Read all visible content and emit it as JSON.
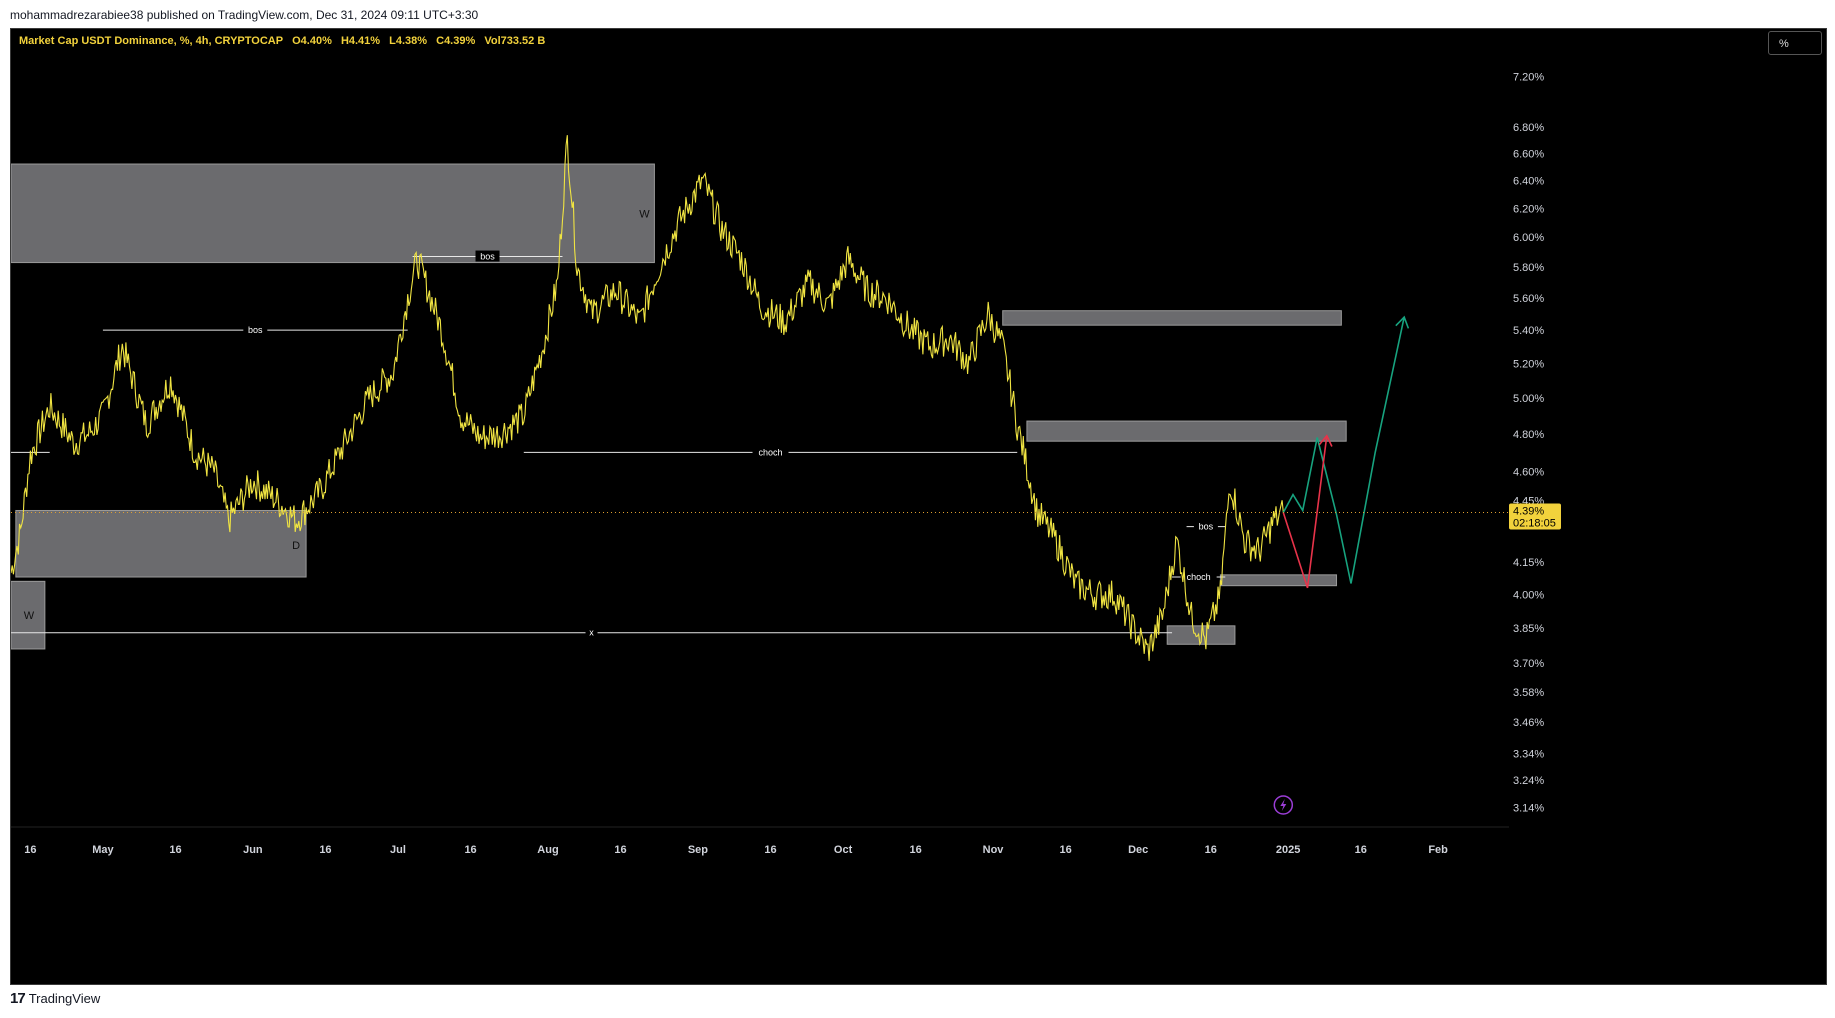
{
  "header": {
    "published_line": "mohammadrezarabiee38 published on TradingView.com, Dec 31, 2024 09:11 UTC+3:30"
  },
  "legend": {
    "symbol": "Market Cap USDT Dominance, %, 4h, CRYPTOCAP",
    "open": "O4.40%",
    "high": "H4.41%",
    "low": "L4.38%",
    "close": "C4.39%",
    "volume": "Vol733.52 B"
  },
  "scale_button": "%",
  "price_label": {
    "value": "4.39%",
    "countdown": "02:18:05",
    "level": 4.39
  },
  "footer": {
    "brand": "TradingView",
    "logo_text": "17"
  },
  "colors": {
    "background": "#000000",
    "price_line": "#f0e442",
    "zone_fill": "#6b6b6e",
    "projection_green": "#17a37f",
    "projection_red": "#e8334a",
    "price_tag": "#f2d23c"
  },
  "icons": {
    "lightning": "lightning-icon",
    "logo": "tradingview-logo-icon"
  },
  "chart_data": {
    "type": "line",
    "scale": "log",
    "y_ticks": [
      "7.20%",
      "6.80%",
      "6.60%",
      "6.40%",
      "6.20%",
      "6.00%",
      "5.80%",
      "5.60%",
      "5.40%",
      "5.20%",
      "5.00%",
      "4.80%",
      "4.60%",
      "4.45%",
      "4.15%",
      "4.00%",
      "3.85%",
      "3.70%",
      "3.58%",
      "3.46%",
      "3.34%",
      "3.24%",
      "3.14%"
    ],
    "y_tick_values": [
      7.2,
      6.8,
      6.6,
      6.4,
      6.2,
      6.0,
      5.8,
      5.6,
      5.4,
      5.2,
      5.0,
      4.8,
      4.6,
      4.45,
      4.15,
      4.0,
      3.85,
      3.7,
      3.58,
      3.46,
      3.34,
      3.24,
      3.14
    ],
    "x_ticks": [
      "16",
      "May",
      "16",
      "Jun",
      "16",
      "Jul",
      "16",
      "Aug",
      "16",
      "Sep",
      "16",
      "Oct",
      "16",
      "Nov",
      "16",
      "Dec",
      "16",
      "2025",
      "16",
      "Feb"
    ],
    "x_tick_dates": [
      "2024-04-16",
      "2024-05-01",
      "2024-05-16",
      "2024-06-01",
      "2024-06-16",
      "2024-07-01",
      "2024-07-16",
      "2024-08-01",
      "2024-08-16",
      "2024-09-01",
      "2024-09-16",
      "2024-10-01",
      "2024-10-16",
      "2024-11-01",
      "2024-11-16",
      "2024-12-01",
      "2024-12-16",
      "2025-01-01",
      "2025-01-16",
      "2025-02-01"
    ],
    "series": [
      {
        "x": [
          "2024-04-12",
          "2024-04-14",
          "2024-04-16",
          "2024-04-20",
          "2024-04-25",
          "2024-04-28",
          "2024-05-01",
          "2024-05-05",
          "2024-05-10",
          "2024-05-15",
          "2024-05-20",
          "2024-05-24",
          "2024-05-27",
          "2024-06-01",
          "2024-06-06",
          "2024-06-10",
          "2024-06-15",
          "2024-06-20",
          "2024-06-25",
          "2024-06-30",
          "2024-07-03",
          "2024-07-05",
          "2024-07-10",
          "2024-07-14",
          "2024-07-18",
          "2024-07-22",
          "2024-07-27",
          "2024-07-31",
          "2024-08-03",
          "2024-08-05",
          "2024-08-07",
          "2024-08-10",
          "2024-08-15",
          "2024-08-20",
          "2024-08-24",
          "2024-08-28",
          "2024-09-02",
          "2024-09-06",
          "2024-09-10",
          "2024-09-14",
          "2024-09-19",
          "2024-09-24",
          "2024-09-28",
          "2024-10-02",
          "2024-10-06",
          "2024-10-10",
          "2024-10-15",
          "2024-10-19",
          "2024-10-23",
          "2024-10-27",
          "2024-10-31",
          "2024-11-03",
          "2024-11-06",
          "2024-11-10",
          "2024-11-14",
          "2024-11-18",
          "2024-11-22",
          "2024-11-26",
          "2024-11-30",
          "2024-12-03",
          "2024-12-06",
          "2024-12-09",
          "2024-12-12",
          "2024-12-15",
          "2024-12-18",
          "2024-12-20",
          "2024-12-23",
          "2024-12-26",
          "2024-12-29",
          "2024-12-31"
        ],
        "values": [
          4.1,
          4.3,
          4.68,
          4.95,
          4.75,
          4.8,
          4.9,
          5.3,
          4.85,
          5.1,
          4.7,
          4.6,
          4.35,
          4.55,
          4.45,
          4.35,
          4.5,
          4.75,
          5.0,
          5.15,
          5.6,
          5.85,
          5.4,
          4.9,
          4.78,
          4.8,
          4.9,
          5.3,
          5.7,
          6.7,
          5.8,
          5.5,
          5.65,
          5.45,
          5.8,
          6.1,
          6.4,
          6.05,
          5.85,
          5.55,
          5.45,
          5.7,
          5.55,
          5.85,
          5.65,
          5.6,
          5.4,
          5.3,
          5.35,
          5.2,
          5.5,
          5.3,
          4.85,
          4.4,
          4.25,
          4.05,
          4.0,
          4.0,
          3.85,
          3.75,
          3.9,
          4.25,
          3.9,
          3.8,
          4.0,
          4.55,
          4.25,
          4.2,
          4.35,
          4.39
        ]
      }
    ],
    "zones": [
      {
        "from": "2024-04-12",
        "to": "2024-08-23",
        "low": 5.83,
        "high": 6.52,
        "label": "W"
      },
      {
        "from": "2024-04-13",
        "to": "2024-06-12",
        "low": 4.08,
        "high": 4.4,
        "label": "D"
      },
      {
        "from": "2024-04-12",
        "to": "2024-04-19",
        "low": 3.76,
        "high": 4.06,
        "label": "W"
      },
      {
        "from": "2024-11-03",
        "to": "2025-01-12",
        "low": 5.43,
        "high": 5.52,
        "label": ""
      },
      {
        "from": "2024-11-08",
        "to": "2025-01-13",
        "low": 4.76,
        "high": 4.87,
        "label": ""
      },
      {
        "from": "2024-12-18",
        "to": "2025-01-11",
        "low": 4.04,
        "high": 4.09,
        "label": ""
      },
      {
        "from": "2024-12-07",
        "to": "2024-12-21",
        "low": 3.78,
        "high": 3.86,
        "label": ""
      }
    ],
    "levels": [
      {
        "from": "2024-05-01",
        "to": "2024-07-03",
        "value": 5.4,
        "label": "bos"
      },
      {
        "from": "2024-07-04",
        "to": "2024-08-04",
        "value": 5.87,
        "label": "bos"
      },
      {
        "from": "2024-07-27",
        "to": "2024-11-06",
        "value": 4.7,
        "label": "choch"
      },
      {
        "from": "2024-04-12",
        "to": "2024-12-08",
        "value": 3.83,
        "label": "x"
      },
      {
        "from": "2024-04-12",
        "to": "2024-04-20",
        "value": 4.7,
        "label": ""
      },
      {
        "from": "2024-12-11",
        "to": "2024-12-19",
        "value": 4.32,
        "label": "bos"
      },
      {
        "from": "2024-12-08",
        "to": "2024-12-19",
        "value": 4.08,
        "label": "choch"
      }
    ],
    "projections": [
      {
        "color": "green",
        "x": [
          "2024-12-31",
          "2025-01-02",
          "2025-01-04",
          "2025-01-07",
          "2025-01-11",
          "2025-01-14",
          "2025-01-19",
          "2025-01-25"
        ],
        "values": [
          4.39,
          4.48,
          4.4,
          4.78,
          4.38,
          4.05,
          4.7,
          5.48
        ]
      },
      {
        "color": "red",
        "x": [
          "2024-12-31",
          "2025-01-05",
          "2025-01-09"
        ],
        "values": [
          4.39,
          4.03,
          4.79
        ]
      }
    ],
    "current_value": 4.39,
    "current_label": "4.39%",
    "countdown": "02:18:05",
    "legend": "none",
    "grid": false
  }
}
